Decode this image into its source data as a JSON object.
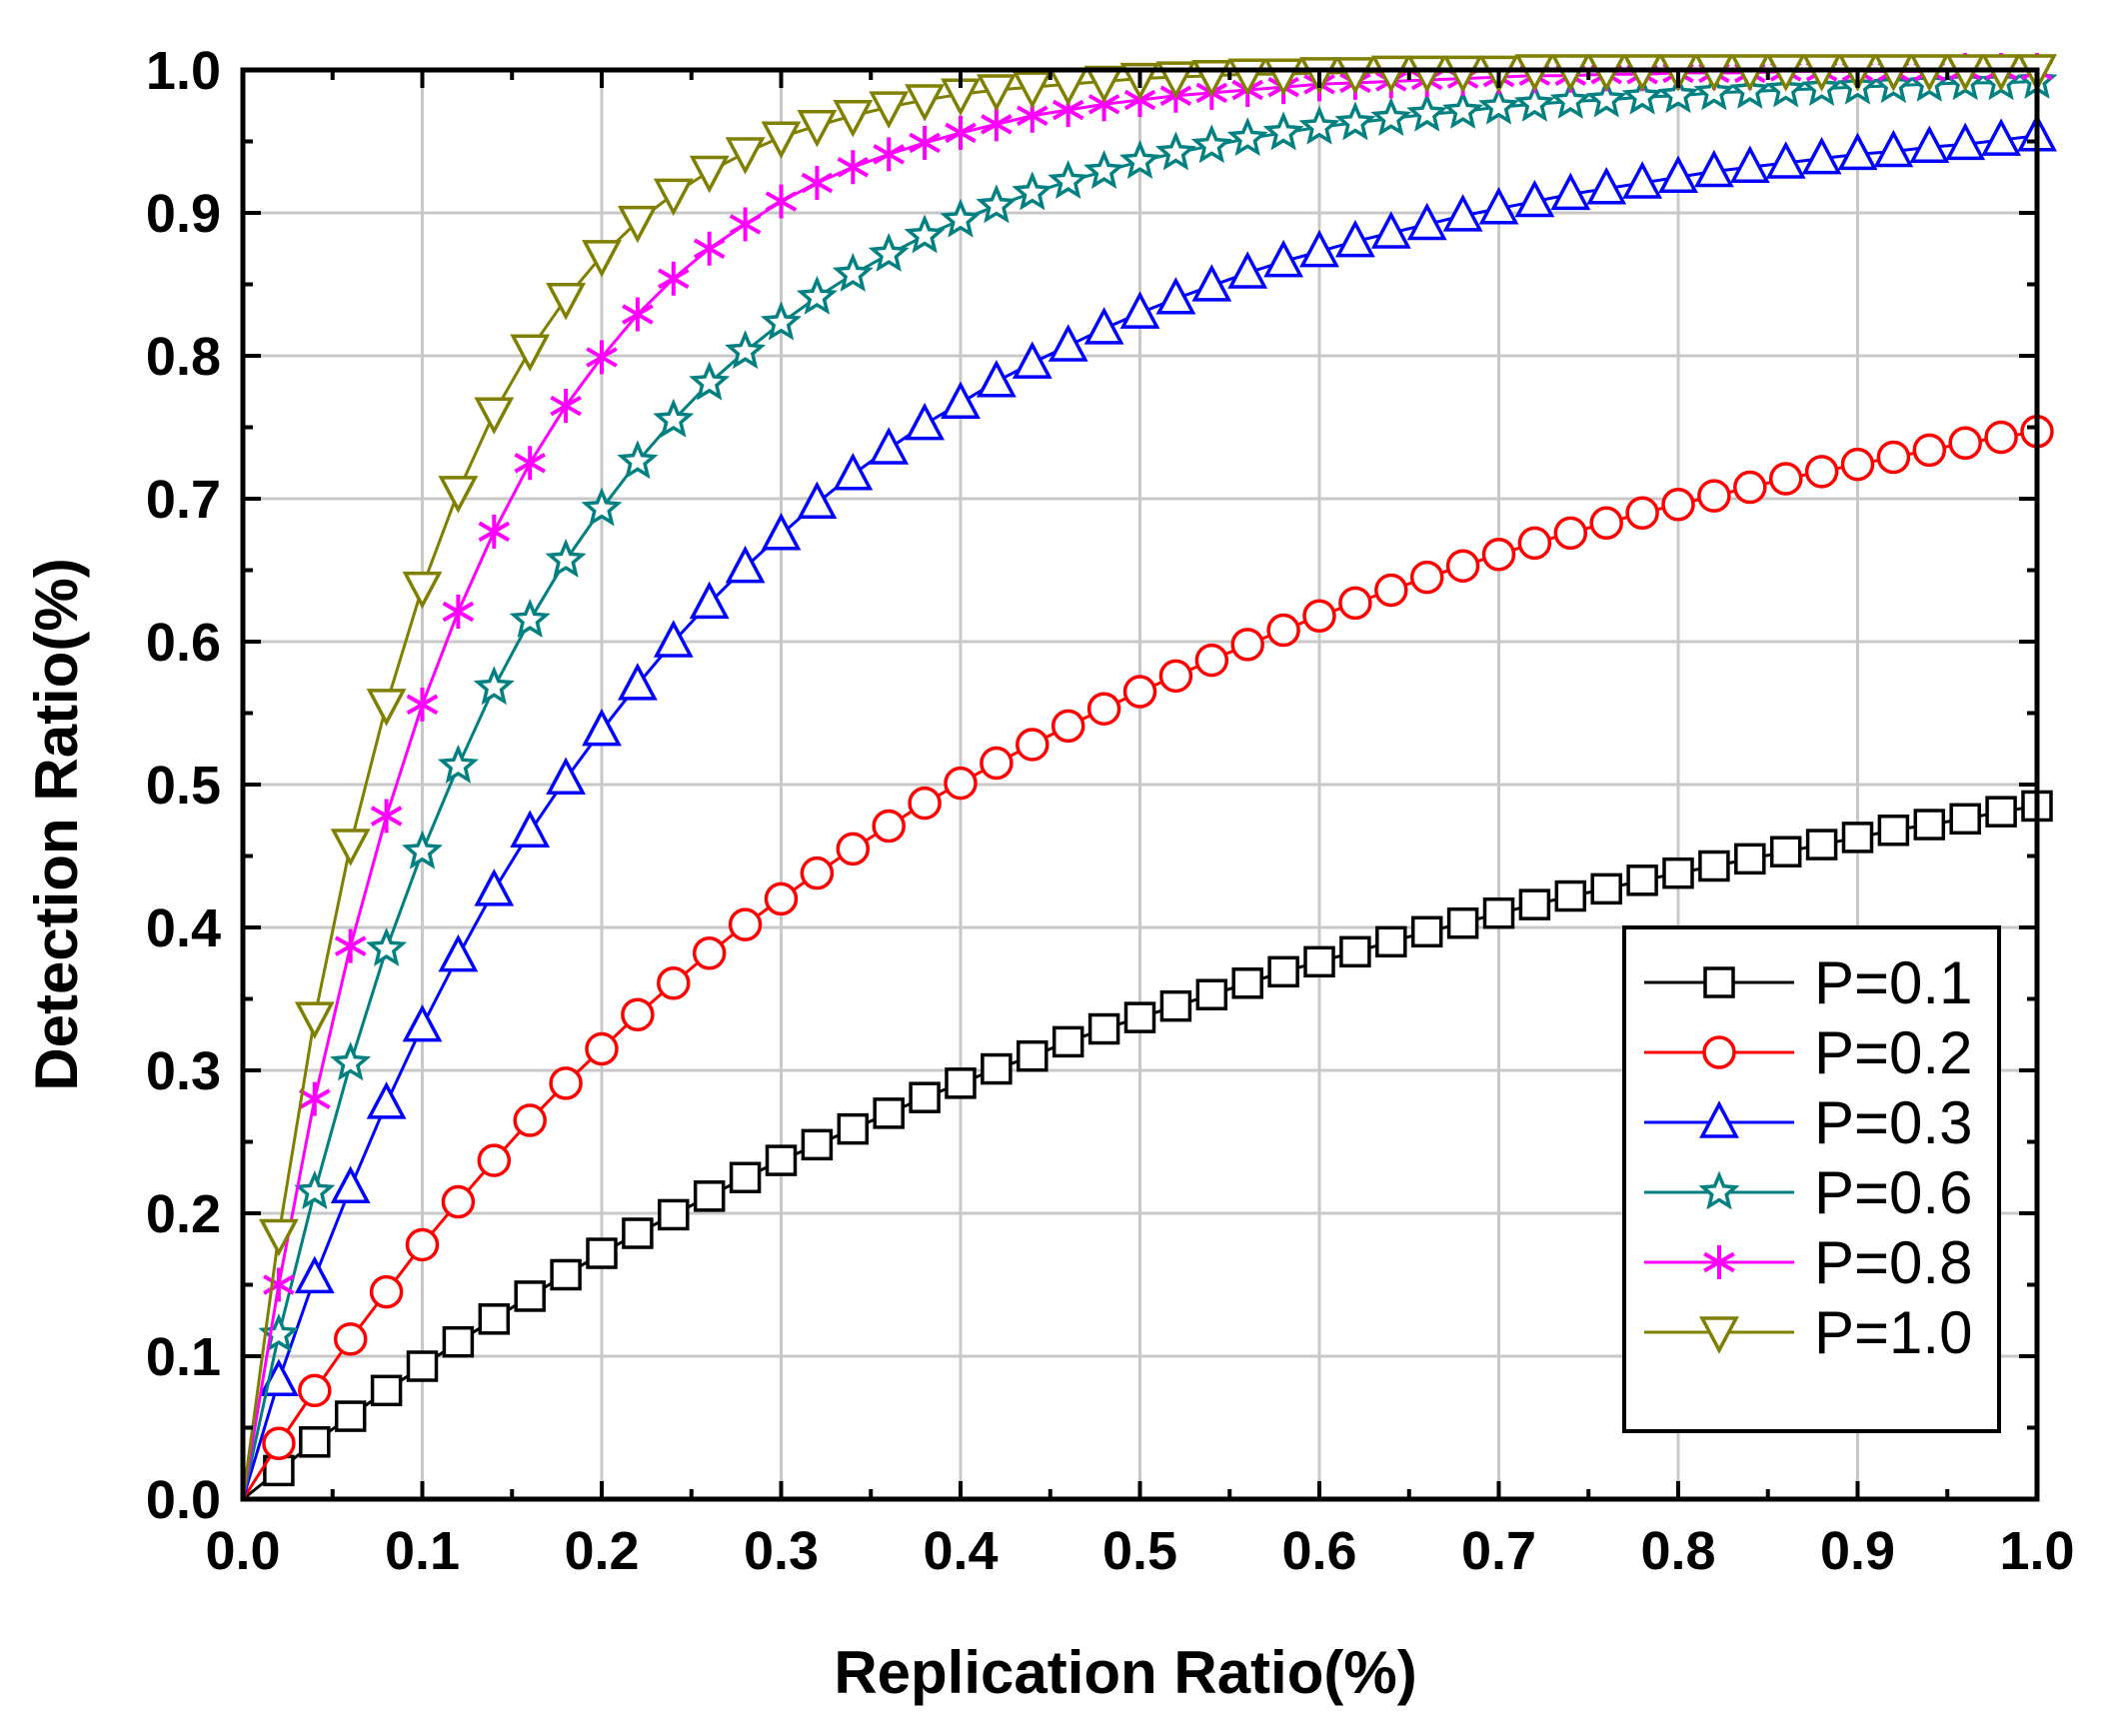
{
  "chart_data": {
    "type": "line",
    "title": "",
    "xlabel": "Replication Ratio(%)",
    "ylabel": "Detection Ratio(%)",
    "xlim": [
      0.0,
      1.0
    ],
    "ylim": [
      0.0,
      1.0
    ],
    "grid": true,
    "legend_position": "bottom-right",
    "x_ticks": [
      "0.0",
      "0.1",
      "0.2",
      "0.3",
      "0.4",
      "0.5",
      "0.6",
      "0.7",
      "0.8",
      "0.9",
      "1.0"
    ],
    "y_ticks": [
      "0.0",
      "0.1",
      "0.2",
      "0.3",
      "0.4",
      "0.5",
      "0.6",
      "0.7",
      "0.8",
      "0.9",
      "1.0"
    ],
    "x": [
      0.0,
      0.02,
      0.04,
      0.06,
      0.08,
      0.1,
      0.12,
      0.14,
      0.16,
      0.18,
      0.2,
      0.22,
      0.24,
      0.26,
      0.28,
      0.3,
      0.32,
      0.34,
      0.36,
      0.38,
      0.4,
      0.42,
      0.44,
      0.46,
      0.48,
      0.5,
      0.52,
      0.54,
      0.56,
      0.58,
      0.6,
      0.62,
      0.64,
      0.66,
      0.68,
      0.7,
      0.72,
      0.74,
      0.76,
      0.78,
      0.8,
      0.82,
      0.84,
      0.86,
      0.88,
      0.9,
      0.92,
      0.94,
      0.96,
      0.98,
      1.0
    ],
    "series": [
      {
        "name": "P=0.1",
        "color": "#000000",
        "marker": "square",
        "values": [
          0.0,
          0.02,
          0.04,
          0.058,
          0.076,
          0.093,
          0.11,
          0.126,
          0.142,
          0.157,
          0.172,
          0.186,
          0.199,
          0.212,
          0.225,
          0.237,
          0.248,
          0.259,
          0.27,
          0.281,
          0.291,
          0.301,
          0.31,
          0.32,
          0.329,
          0.337,
          0.345,
          0.353,
          0.361,
          0.369,
          0.376,
          0.383,
          0.39,
          0.397,
          0.403,
          0.41,
          0.416,
          0.422,
          0.427,
          0.433,
          0.438,
          0.443,
          0.448,
          0.453,
          0.458,
          0.463,
          0.468,
          0.472,
          0.476,
          0.481,
          0.485
        ]
      },
      {
        "name": "P=0.2",
        "color": "#ff0000",
        "marker": "circle",
        "values": [
          0.0,
          0.039,
          0.076,
          0.112,
          0.145,
          0.178,
          0.208,
          0.237,
          0.265,
          0.291,
          0.315,
          0.339,
          0.361,
          0.382,
          0.402,
          0.42,
          0.438,
          0.455,
          0.471,
          0.487,
          0.501,
          0.515,
          0.528,
          0.541,
          0.553,
          0.565,
          0.576,
          0.587,
          0.598,
          0.608,
          0.618,
          0.627,
          0.636,
          0.645,
          0.653,
          0.661,
          0.669,
          0.676,
          0.683,
          0.69,
          0.696,
          0.702,
          0.708,
          0.714,
          0.719,
          0.724,
          0.729,
          0.734,
          0.739,
          0.743,
          0.747
        ]
      },
      {
        "name": "P=0.3",
        "color": "#0000ff",
        "marker": "triangle-up",
        "values": [
          0.0,
          0.083,
          0.155,
          0.218,
          0.277,
          0.331,
          0.38,
          0.426,
          0.467,
          0.504,
          0.538,
          0.57,
          0.6,
          0.627,
          0.652,
          0.675,
          0.697,
          0.717,
          0.735,
          0.752,
          0.767,
          0.782,
          0.795,
          0.807,
          0.819,
          0.83,
          0.84,
          0.849,
          0.858,
          0.866,
          0.873,
          0.88,
          0.886,
          0.892,
          0.898,
          0.903,
          0.908,
          0.913,
          0.917,
          0.921,
          0.925,
          0.929,
          0.932,
          0.935,
          0.938,
          0.941,
          0.943,
          0.946,
          0.948,
          0.951,
          0.954
        ]
      },
      {
        "name": "P=0.6",
        "color": "#008080",
        "marker": "star",
        "values": [
          0.0,
          0.115,
          0.215,
          0.305,
          0.385,
          0.453,
          0.513,
          0.568,
          0.615,
          0.657,
          0.693,
          0.726,
          0.755,
          0.781,
          0.803,
          0.823,
          0.841,
          0.857,
          0.871,
          0.884,
          0.895,
          0.905,
          0.914,
          0.922,
          0.929,
          0.936,
          0.942,
          0.947,
          0.952,
          0.956,
          0.96,
          0.963,
          0.966,
          0.969,
          0.971,
          0.974,
          0.976,
          0.978,
          0.979,
          0.981,
          0.982,
          0.984,
          0.985,
          0.986,
          0.987,
          0.988,
          0.989,
          0.99,
          0.991,
          0.991,
          0.992
        ]
      },
      {
        "name": "P=0.8",
        "color": "#ff00ff",
        "marker": "asterisk",
        "values": [
          0.0,
          0.15,
          0.28,
          0.387,
          0.478,
          0.556,
          0.621,
          0.677,
          0.725,
          0.765,
          0.799,
          0.829,
          0.854,
          0.875,
          0.892,
          0.908,
          0.921,
          0.932,
          0.941,
          0.949,
          0.956,
          0.962,
          0.968,
          0.972,
          0.976,
          0.979,
          0.982,
          0.984,
          0.986,
          0.988,
          0.99,
          0.991,
          0.992,
          0.993,
          0.994,
          0.995,
          0.996,
          0.996,
          0.997,
          0.997,
          0.998,
          0.998,
          0.998,
          0.999,
          0.999,
          0.999,
          0.999,
          0.999,
          1.0,
          1.0,
          1.0
        ]
      },
      {
        "name": "P=1.0",
        "color": "#808000",
        "marker": "triangle-down",
        "values": [
          0.0,
          0.185,
          0.337,
          0.458,
          0.556,
          0.638,
          0.705,
          0.76,
          0.804,
          0.84,
          0.87,
          0.894,
          0.913,
          0.929,
          0.942,
          0.953,
          0.961,
          0.968,
          0.974,
          0.979,
          0.983,
          0.986,
          0.988,
          0.99,
          0.992,
          0.994,
          0.995,
          0.996,
          0.997,
          0.997,
          0.998,
          0.998,
          0.999,
          0.999,
          0.999,
          0.999,
          1.0,
          1.0,
          1.0,
          1.0,
          1.0,
          1.0,
          1.0,
          1.0,
          1.0,
          1.0,
          1.0,
          1.0,
          1.0,
          1.0,
          1.0
        ]
      }
    ]
  }
}
